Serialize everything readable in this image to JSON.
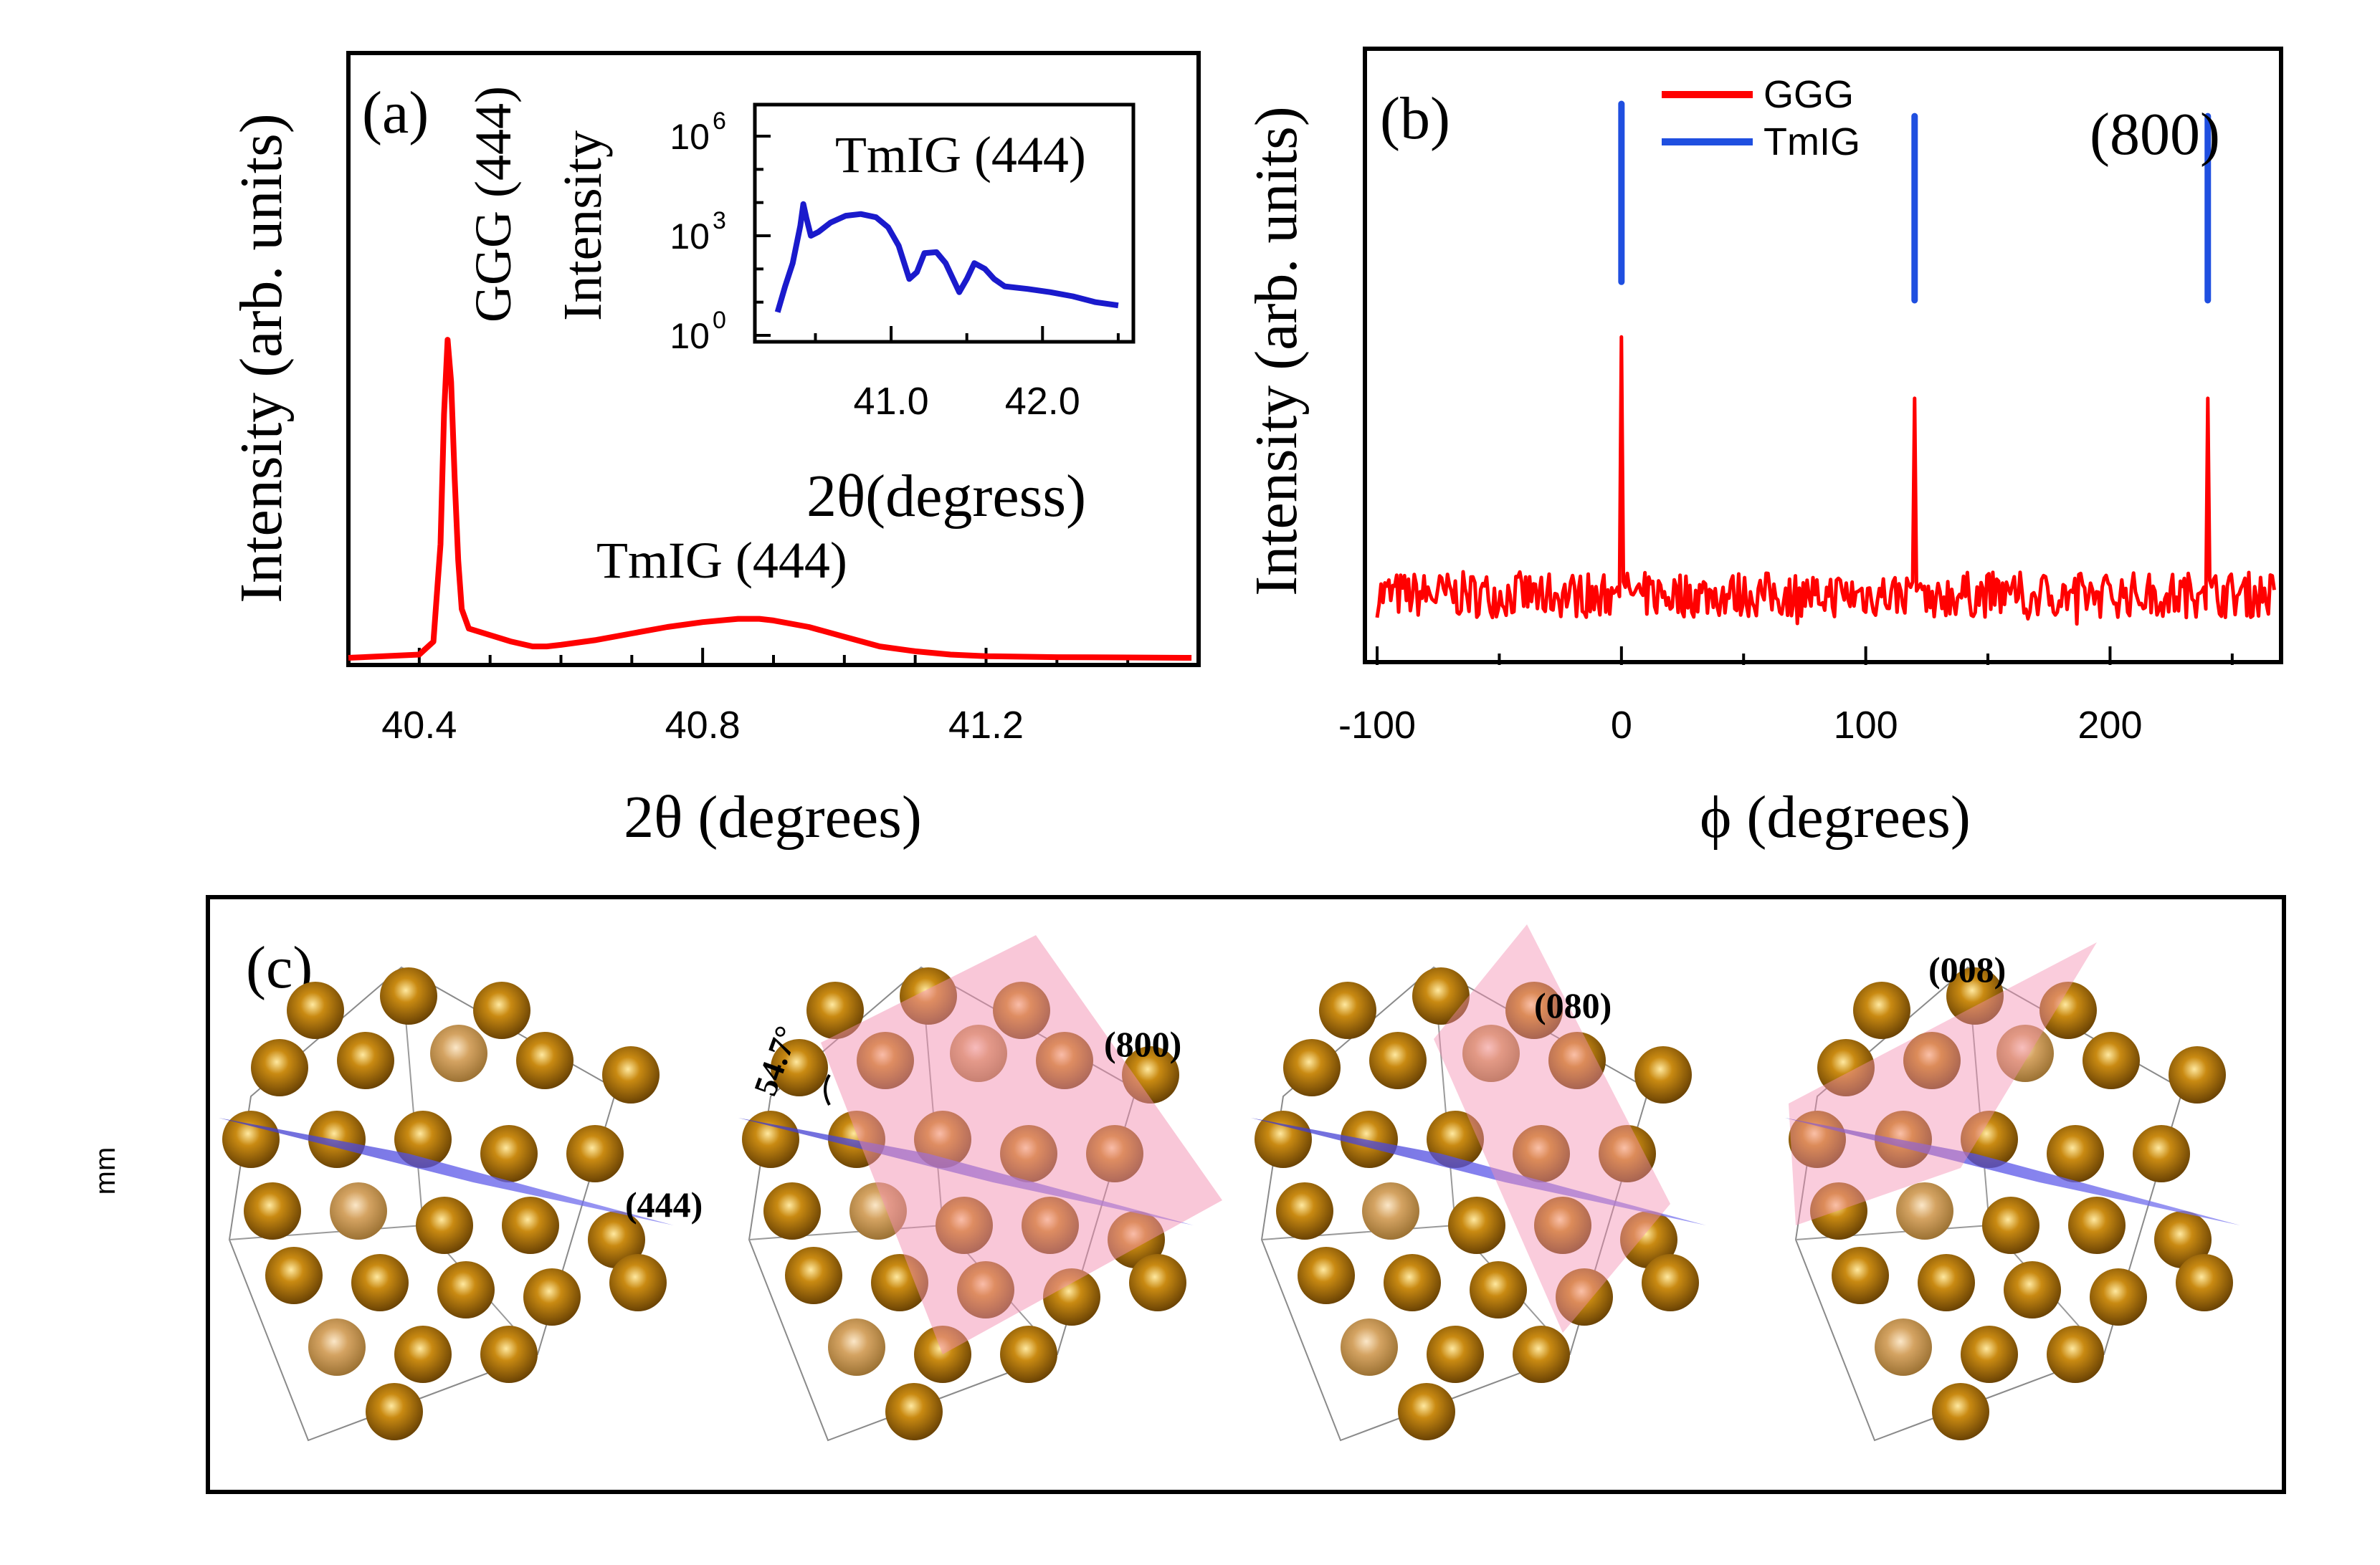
{
  "side_label": "mm",
  "chart_data": [
    {
      "panel": "(a)",
      "type": "line",
      "xlabel": "2θ (degrees)",
      "ylabel": "Intensity (arb. units)",
      "xlim": [
        40.3,
        41.5
      ],
      "xticks": [
        "40.4",
        "40.8",
        "41.2"
      ],
      "ylim": [
        0,
        1
      ],
      "color": "#ff0000",
      "annotations": [
        "GGG (444)",
        "TmIG (444)"
      ],
      "x": [
        40.3,
        40.4,
        40.42,
        40.43,
        40.435,
        40.44,
        40.445,
        40.45,
        40.455,
        40.46,
        40.47,
        40.5,
        40.53,
        40.56,
        40.58,
        40.6,
        40.65,
        40.7,
        40.75,
        40.8,
        40.85,
        40.88,
        40.9,
        40.95,
        41.0,
        41.05,
        41.1,
        41.15,
        41.2,
        41.3,
        41.4,
        41.49
      ],
      "values": [
        0.0,
        0.01,
        0.05,
        0.35,
        0.75,
        0.98,
        0.85,
        0.55,
        0.3,
        0.15,
        0.09,
        0.07,
        0.05,
        0.035,
        0.035,
        0.04,
        0.055,
        0.075,
        0.095,
        0.11,
        0.12,
        0.12,
        0.115,
        0.095,
        0.065,
        0.035,
        0.02,
        0.01,
        0.005,
        0.002,
        0.001,
        0.0
      ],
      "inset": {
        "type": "line",
        "title": "TmIG (444)",
        "xlabel": "2θ(degress)",
        "ylabel": "Intensity",
        "yscale": "log",
        "ytick_labels": [
          "10",
          "10",
          "10"
        ],
        "ytick_exponents": [
          "0",
          "3",
          "6"
        ],
        "ytick_values": [
          1,
          1000,
          1000000
        ],
        "xticks": [
          "41.0",
          "42.0"
        ],
        "xlim": [
          40.1,
          42.6
        ],
        "color": "#1a1acc",
        "x": [
          40.25,
          40.3,
          40.35,
          40.4,
          40.42,
          40.44,
          40.47,
          40.52,
          40.6,
          40.7,
          40.8,
          40.9,
          40.98,
          41.05,
          41.12,
          41.17,
          41.22,
          41.3,
          41.36,
          41.45,
          41.5,
          41.55,
          41.62,
          41.68,
          41.75,
          41.9,
          42.05,
          42.2,
          42.35,
          42.5
        ],
        "values": [
          5,
          30,
          150,
          2000,
          9000,
          3500,
          1000,
          1300,
          2500,
          4000,
          4500,
          3600,
          1800,
          500,
          50,
          80,
          300,
          320,
          150,
          20,
          50,
          150,
          100,
          50,
          30,
          25,
          20,
          15,
          10,
          8
        ]
      }
    },
    {
      "panel": "(b)",
      "type": "line",
      "annotation": "(800)",
      "xlabel": "ϕ (degrees)",
      "ylabel": "Intensity (arb. units)",
      "xlim": [
        -105,
        270
      ],
      "xticks": [
        "-100",
        "0",
        "100",
        "200"
      ],
      "ylim": [
        0,
        1
      ],
      "series": [
        {
          "name": "GGG",
          "color": "#ff0000",
          "baseline": 0.11,
          "peaks_x": [
            0,
            120,
            240
          ],
          "peaks_y": [
            0.53,
            0.43,
            0.43
          ]
        },
        {
          "name": "TmIG",
          "color": "#1f4fe0",
          "peaks_x": [
            0,
            120,
            240
          ],
          "peaks_top": [
            0.91,
            0.89,
            0.89
          ],
          "peaks_bottom": [
            0.62,
            0.59,
            0.59
          ]
        }
      ]
    }
  ],
  "panel_c": {
    "label": "(c)",
    "crystals": [
      {
        "planes": [
          "(444)"
        ]
      },
      {
        "planes": [
          "(800)"
        ],
        "angle_label": "54.7°"
      },
      {
        "planes": [
          "(080)"
        ]
      },
      {
        "planes": [
          "(008)"
        ]
      }
    ]
  }
}
